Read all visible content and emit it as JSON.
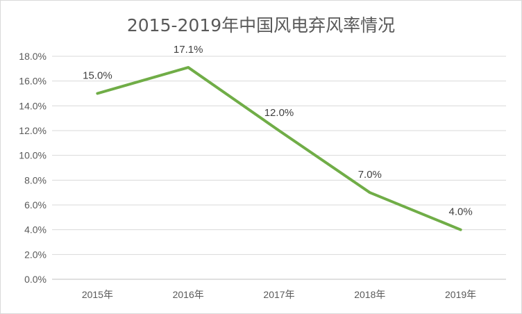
{
  "chart_data": {
    "type": "line",
    "title": "2015-2019年中国风电弃风率情况",
    "xlabel": "",
    "ylabel": "",
    "categories": [
      "2015年",
      "2016年",
      "2017年",
      "2018年",
      "2019年"
    ],
    "series": [
      {
        "values": [
          15.0,
          17.1,
          12.0,
          7.0,
          4.0
        ],
        "labels": [
          "15.0%",
          "17.1%",
          "12.0%",
          "7.0%",
          "4.0%"
        ],
        "color": "#70ad47"
      }
    ],
    "ylim": [
      0,
      18
    ],
    "yticks": [
      "0.0%",
      "2.0%",
      "4.0%",
      "6.0%",
      "8.0%",
      "10.0%",
      "12.0%",
      "14.0%",
      "16.0%",
      "18.0%"
    ],
    "grid": true,
    "legend": "none"
  }
}
